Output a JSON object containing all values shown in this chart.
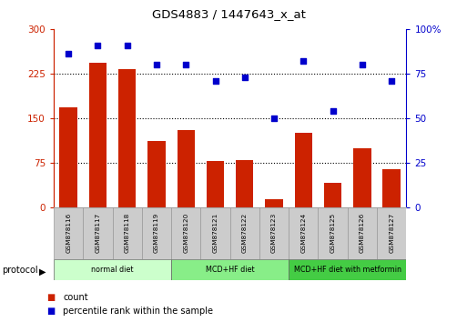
{
  "title": "GDS4883 / 1447643_x_at",
  "samples": [
    "GSM878116",
    "GSM878117",
    "GSM878118",
    "GSM878119",
    "GSM878120",
    "GSM878121",
    "GSM878122",
    "GSM878123",
    "GSM878124",
    "GSM878125",
    "GSM878126",
    "GSM878127"
  ],
  "counts": [
    168,
    243,
    232,
    112,
    130,
    78,
    80,
    15,
    125,
    42,
    100,
    65
  ],
  "percentile_ranks": [
    86,
    91,
    91,
    80,
    80,
    71,
    73,
    50,
    82,
    54,
    80,
    71
  ],
  "bar_color": "#cc2200",
  "dot_color": "#0000cc",
  "left_ylim": [
    0,
    300
  ],
  "right_ylim": [
    0,
    100
  ],
  "left_yticks": [
    0,
    75,
    150,
    225,
    300
  ],
  "right_yticks": [
    0,
    25,
    50,
    75,
    100
  ],
  "right_yticklabels": [
    "0",
    "25",
    "50",
    "75",
    "100%"
  ],
  "hline_values": [
    75,
    150,
    225
  ],
  "groups": [
    {
      "label": "normal diet",
      "start": 0,
      "end": 4,
      "color": "#ccffcc"
    },
    {
      "label": "MCD+HF diet",
      "start": 4,
      "end": 8,
      "color": "#88ee88"
    },
    {
      "label": "MCD+HF diet with metformin",
      "start": 8,
      "end": 12,
      "color": "#44cc44"
    }
  ],
  "legend_items": [
    {
      "label": "count",
      "color": "#cc2200"
    },
    {
      "label": "percentile rank within the sample",
      "color": "#0000cc"
    }
  ],
  "protocol_label": "protocol",
  "background_color": "#ffffff",
  "plot_bg": "#ffffff",
  "tick_label_bg": "#cccccc",
  "bar_width": 0.6
}
